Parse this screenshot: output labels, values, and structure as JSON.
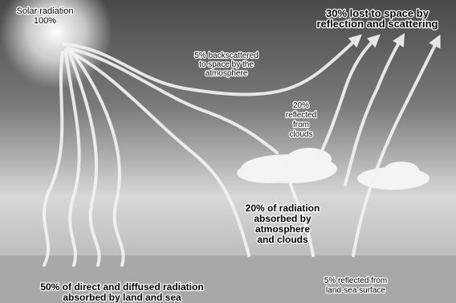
{
  "title": [
    "Solar radiation",
    "100%"
  ],
  "labels": {
    "backscattered": [
      "5% backscattered",
      "to space by the",
      "atmosphere"
    ],
    "lost_to_space": [
      "30% lost to space by",
      "reflection and scattering"
    ],
    "reflected_clouds": [
      "20%",
      "reflected",
      "from",
      "clouds"
    ],
    "absorbed_atmosphere": [
      "20% of radiation",
      "absorbed by",
      "atmosphere",
      "and clouds"
    ],
    "absorbed_land": [
      "50% of direct and diffused radiation",
      "absorbed by land and sea"
    ],
    "reflected_surface": [
      "5% reflected from",
      "land-sea surface"
    ]
  }
}
